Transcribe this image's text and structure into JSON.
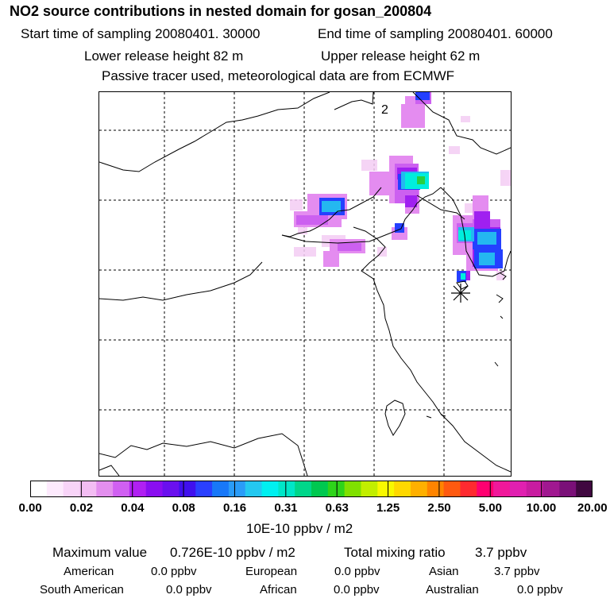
{
  "header": {
    "title": "NO2 source contributions in nested domain for gosan_200804",
    "start_label": "Start time of sampling 20080401. 30000",
    "end_label": "End time of sampling 20080401. 60000",
    "lower_height": "Lower release height   82 m",
    "upper_height": "Upper release height   62 m",
    "tracer_note": "Passive tracer used, meteorological data are from ECMWF"
  },
  "map": {
    "panel_number": "2",
    "receptor_marker": "asterisk-icon"
  },
  "colorbar": {
    "colors": [
      "#ffffff",
      "#fdeafd",
      "#f8d4f8",
      "#f3bdf3",
      "#e38fee",
      "#d060f2",
      "#b020f2",
      "#8a0ef0",
      "#6a10ee",
      "#4010ee",
      "#2a40ff",
      "#1878f8",
      "#2a9cf8",
      "#24c8f0",
      "#00f0f0",
      "#00e6c8",
      "#00d68a",
      "#00c850",
      "#2ed41a",
      "#80e000",
      "#c2ee00",
      "#f8f800",
      "#ffd800",
      "#ffb000",
      "#ff8400",
      "#ff5a10",
      "#ff2a30",
      "#ff0070",
      "#f0189a",
      "#e020b0",
      "#c81ca0",
      "#a01890",
      "#7a1078",
      "#400840"
    ],
    "ticks": [
      "0.00",
      "0.02",
      "0.04",
      "0.08",
      "0.16",
      "0.31",
      "0.63",
      "1.25",
      "2.50",
      "5.00",
      "10.00",
      "20.00"
    ],
    "unit_label": "10E-10 ppbv / m2"
  },
  "summary": {
    "max_label": "Maximum value",
    "max_value": "0.726E-10 ppbv / m2",
    "total_label": "Total mixing ratio",
    "total_value": "3.7 ppbv",
    "regions": [
      {
        "name": "American",
        "value": "0.0 ppbv"
      },
      {
        "name": "European",
        "value": "0.0 ppbv"
      },
      {
        "name": "Asian",
        "value": "3.7 ppbv"
      },
      {
        "name": "South American",
        "value": "0.0 ppbv"
      },
      {
        "name": "African",
        "value": "0.0 ppbv"
      },
      {
        "name": "Australian",
        "value": "0.0 ppbv"
      }
    ]
  }
}
